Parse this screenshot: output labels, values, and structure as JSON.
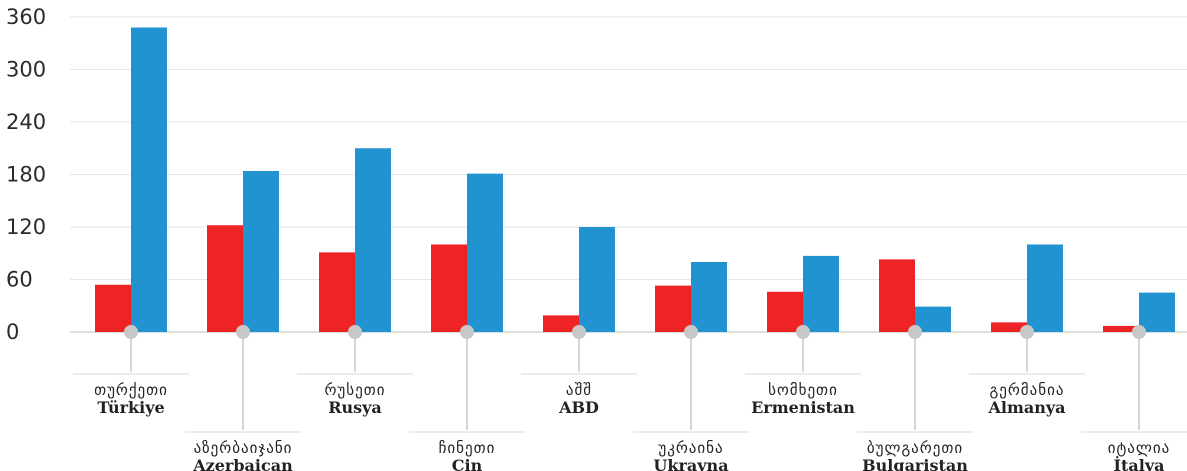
{
  "chart_data": {
    "type": "bar",
    "title": "",
    "xlabel": "",
    "ylabel": "",
    "ylim": [
      0,
      360
    ],
    "yticks": [
      0,
      60,
      120,
      180,
      240,
      300,
      360
    ],
    "grid": true,
    "categories": [
      {
        "geo": "თურქეთი",
        "name": "Türkiye"
      },
      {
        "geo": "აზერბაიჯანი",
        "name": "Azerbaican"
      },
      {
        "geo": "რუსეთი",
        "name": "Rusya"
      },
      {
        "geo": "ჩინეთი",
        "name": "Cin"
      },
      {
        "geo": "აშშ",
        "name": "ABD"
      },
      {
        "geo": "უკრაინა",
        "name": "Ukrayna"
      },
      {
        "geo": "სომხეთი",
        "name": "Ermenistan"
      },
      {
        "geo": "ბულგარეთი",
        "name": "Bulgaristan"
      },
      {
        "geo": "გერმანია",
        "name": "Almanya"
      },
      {
        "geo": "იტალია",
        "name": "İtalya"
      }
    ],
    "series": [
      {
        "color": "#ee2326",
        "values": [
          54,
          122,
          91,
          100,
          19,
          53,
          46,
          83,
          11,
          7
        ]
      },
      {
        "color": "#2293d1",
        "values": [
          348,
          184,
          210,
          181,
          120,
          80,
          87,
          29,
          100,
          45
        ]
      }
    ]
  }
}
